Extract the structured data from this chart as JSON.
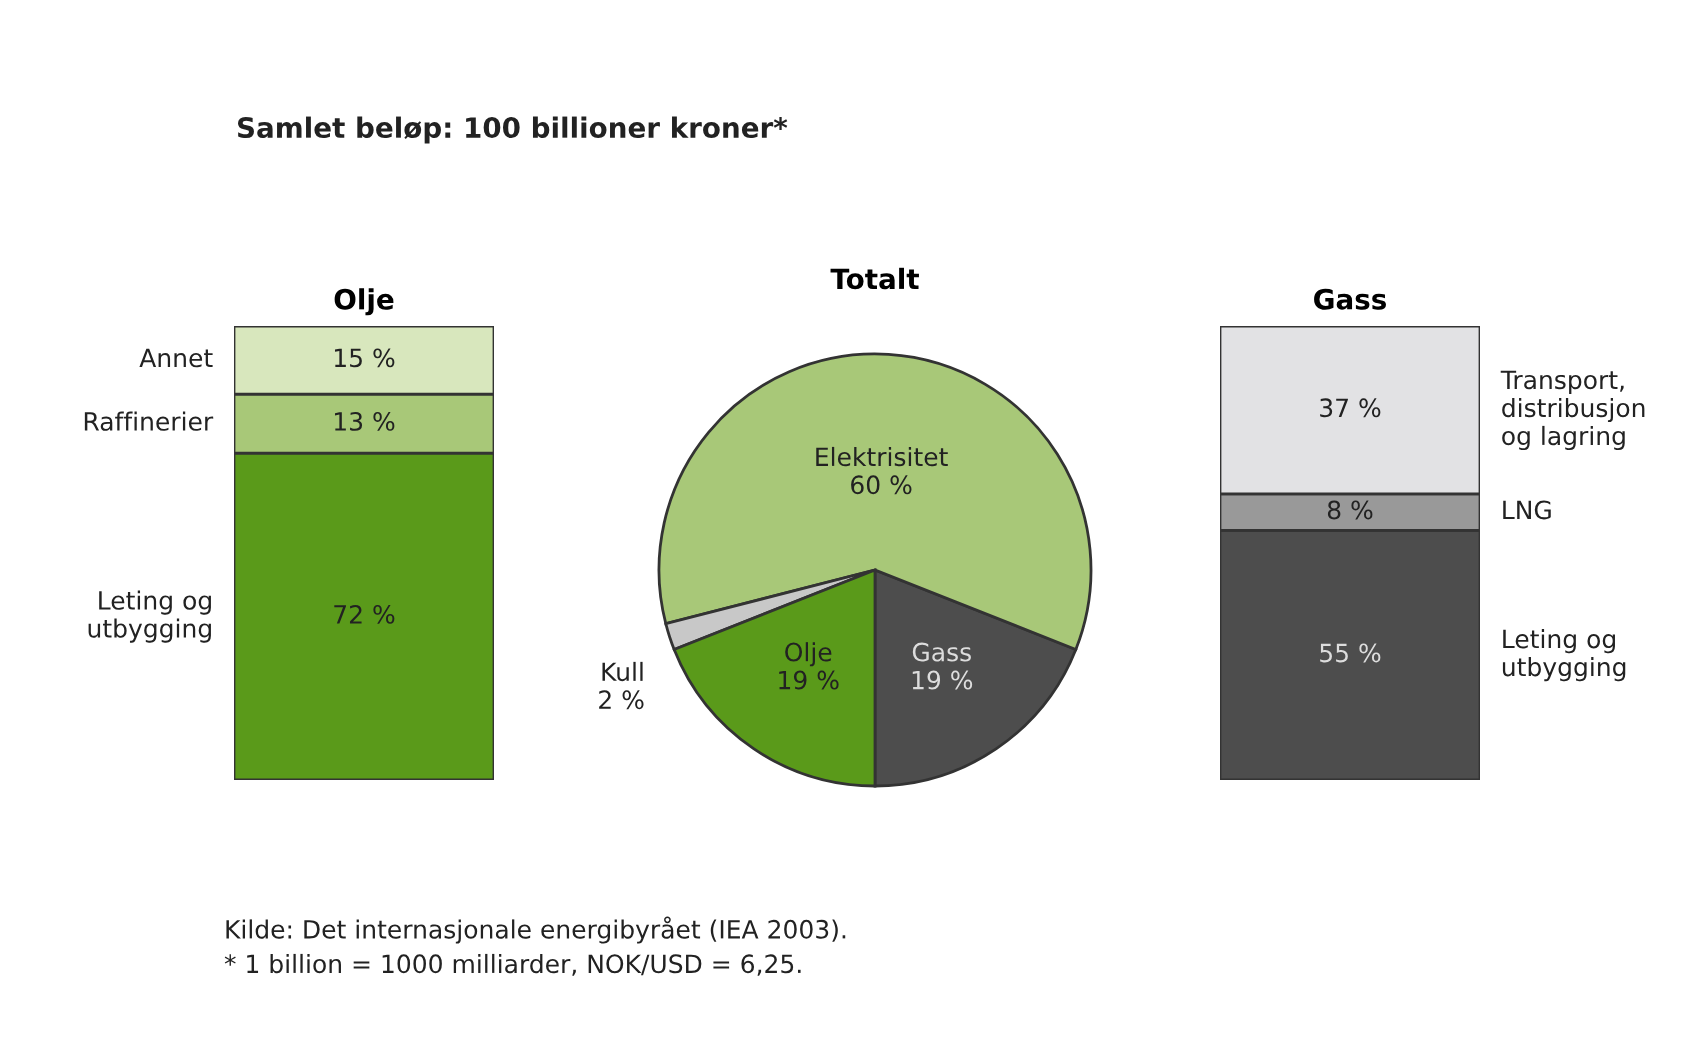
{
  "chart_data": [
    {
      "type": "bar",
      "title": "Olje",
      "categories": [
        null
      ],
      "stacked": true,
      "ylim": [
        0,
        100
      ],
      "tick_labels": false,
      "series": [
        {
          "name": "Leting og\nutbygging",
          "color": "#5a9a1a",
          "values": [
            72
          ],
          "value_labels": [
            "72 %"
          ]
        },
        {
          "name": "Raffinerier",
          "color": "#a8c878",
          "values": [
            13
          ],
          "value_labels": [
            "13 %"
          ]
        },
        {
          "name": "Annet",
          "color": "#d8e7bd",
          "values": [
            15
          ],
          "value_labels": [
            "15 %"
          ]
        }
      ]
    },
    {
      "type": "pie",
      "title": "Totalt",
      "categories": [
        "Gass",
        "Elektrisitet",
        "Kull",
        "Olje"
      ],
      "values": [
        19,
        60,
        2,
        19
      ],
      "colors": [
        "#4d4d4d",
        "#a8c878",
        "#c8c8c8",
        "#5a9a1a"
      ],
      "value_labels": [
        "19 %",
        "60 %",
        "2 %",
        "19 %"
      ],
      "annotations": [
        "Samlet beløp: 100 billioner kroner*",
        "Kilde: Det internasjonale energibyrået (IEA 2003).",
        "* 1 billion = 1000 milliarder, NOK/USD = 6,25."
      ]
    },
    {
      "type": "bar",
      "title": "Gass",
      "categories": [
        null
      ],
      "stacked": true,
      "ylim": [
        0,
        100
      ],
      "tick_labels": false,
      "series": [
        {
          "name": "Leting og\nutbygging",
          "color": "#4d4d4d",
          "values": [
            55
          ],
          "value_labels": [
            "55 %"
          ]
        },
        {
          "name": "LNG",
          "color": "#999999",
          "values": [
            8
          ],
          "value_labels": [
            "8 %"
          ]
        },
        {
          "name": "Transport,\ndistribusjon\nog lagring",
          "color": "#e2e2e4",
          "values": [
            37
          ],
          "value_labels": [
            "37 %"
          ]
        }
      ]
    }
  ]
}
